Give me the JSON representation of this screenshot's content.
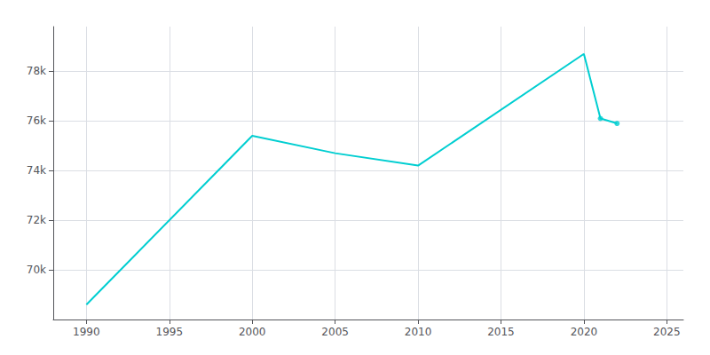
{
  "chart_data": {
    "type": "line",
    "x": [
      1990,
      2000,
      2005,
      2010,
      2020,
      2021,
      2022
    ],
    "series": [
      {
        "type": "line",
        "color": "#00CED1",
        "x": [
          1990,
          2000,
          2005,
          2010,
          2020,
          2021,
          2022
        ],
        "values": [
          68600,
          75400,
          74700,
          74200,
          78700,
          76100,
          75900
        ]
      },
      {
        "type": "scatter",
        "marker": "circle",
        "color": "#00CED1",
        "x": [
          2021,
          2022
        ],
        "values": [
          76100,
          75900
        ]
      }
    ],
    "xlim": [
      1988,
      2026
    ],
    "xticks": [
      1990,
      1995,
      2000,
      2005,
      2010,
      2015,
      2020,
      2025
    ],
    "ylim": [
      68000,
      79800
    ],
    "yticks": [
      {
        "value": 70000,
        "label": "70k"
      },
      {
        "value": 72000,
        "label": "72k"
      },
      {
        "value": 74000,
        "label": "74k"
      },
      {
        "value": 76000,
        "label": "76k"
      },
      {
        "value": 78000,
        "label": "78k"
      }
    ],
    "grid": true
  }
}
